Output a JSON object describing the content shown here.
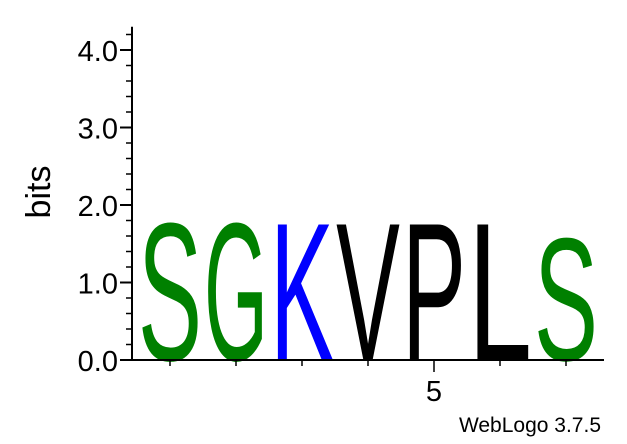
{
  "chart_data": {
    "type": "sequence-logo",
    "ylabel": "bits",
    "ylim": [
      0,
      4.3
    ],
    "y_tick_labels": [
      "0.0",
      "1.0",
      "2.0",
      "3.0",
      "4.0"
    ],
    "y_tick_values": [
      0,
      1,
      2,
      3,
      4
    ],
    "x_tick_labels": [
      "5"
    ],
    "x_tick_positions": [
      5
    ],
    "positions": [
      1,
      2,
      3,
      4,
      5,
      6,
      7
    ],
    "stacks": [
      {
        "position": 1,
        "letter": "S",
        "height": 1.82,
        "color": "#008000"
      },
      {
        "position": 2,
        "letter": "G",
        "height": 1.82,
        "color": "#008000"
      },
      {
        "position": 3,
        "letter": "K",
        "height": 1.82,
        "color": "#0000ff"
      },
      {
        "position": 4,
        "letter": "V",
        "height": 1.82,
        "color": "#000000"
      },
      {
        "position": 5,
        "letter": "P",
        "height": 1.82,
        "color": "#000000"
      },
      {
        "position": 6,
        "letter": "L",
        "height": 1.82,
        "color": "#000000"
      },
      {
        "position": 7,
        "letter": "S",
        "height": 1.62,
        "color": "#008000"
      }
    ]
  },
  "credit": "WebLogo 3.7.5"
}
